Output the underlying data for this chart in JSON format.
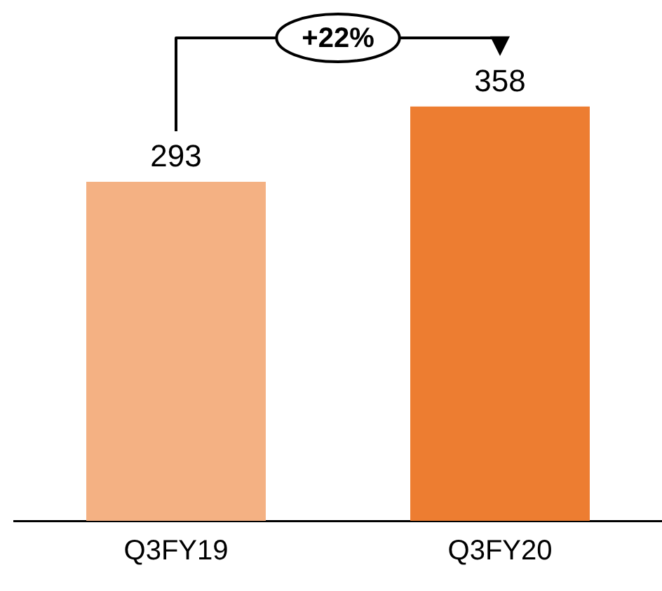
{
  "chart_data": {
    "type": "bar",
    "categories": [
      "Q3FY19",
      "Q3FY20"
    ],
    "values": [
      293,
      358
    ],
    "colors": [
      "#f4b183",
      "#ed7d31"
    ],
    "data_labels": true,
    "grid": false,
    "legend": false,
    "annotations": [
      "+22%"
    ]
  }
}
